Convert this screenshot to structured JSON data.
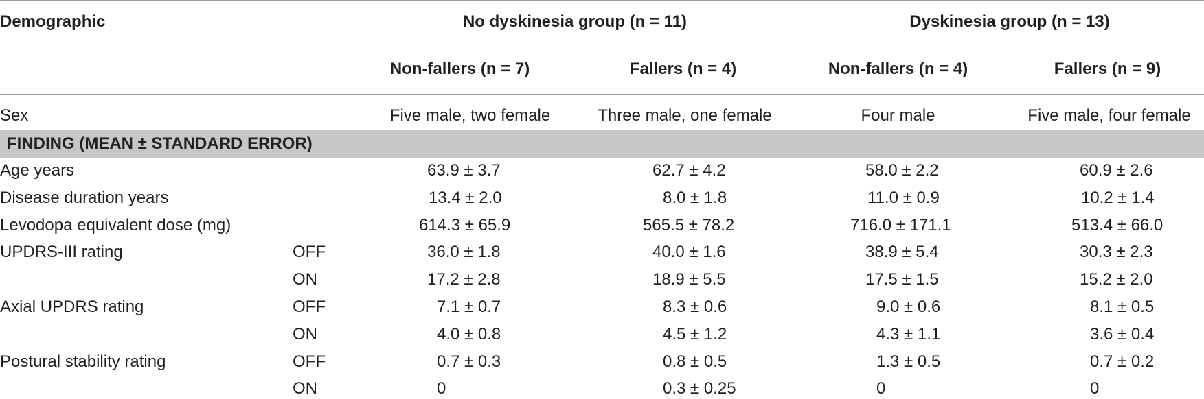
{
  "header": {
    "demographic": "Demographic",
    "group_no_dyskinesia": "No dyskinesia group (n = 11)",
    "group_dyskinesia": "Dyskinesia group (n = 13)",
    "sub_columns": [
      "Non-fallers (n = 7)",
      "Fallers (n = 4)",
      "Non-fallers (n = 4)",
      "Fallers (n = 9)"
    ]
  },
  "sex_row": {
    "label": "Sex",
    "values": [
      "Five male, two female",
      "Three male, one female",
      "Four male",
      "Five male, four female"
    ]
  },
  "section_heading": "FINDING (MEAN ± STANDARD ERROR)",
  "rows": [
    {
      "label": "Age years",
      "condition": "",
      "values": [
        "63.9 ± 3.7",
        "62.7 ± 4.2",
        "58.0 ± 2.2",
        "60.9 ± 2.6"
      ]
    },
    {
      "label": "Disease duration years",
      "condition": "",
      "values": [
        "13.4 ± 2.0",
        "8.0 ± 1.8",
        "11.0 ± 0.9",
        "10.2 ± 1.4"
      ]
    },
    {
      "label": "Levodopa equivalent dose (mg)",
      "condition": "",
      "values": [
        "614.3 ± 65.9",
        "565.5 ± 78.2",
        "716.0 ± 171.1",
        "513.4 ± 66.0"
      ]
    },
    {
      "label": "UPDRS-III rating",
      "condition": "OFF",
      "values": [
        "36.0 ± 1.8",
        "40.0 ± 1.6",
        "38.9 ± 5.4",
        "30.3 ± 2.3"
      ]
    },
    {
      "label": "",
      "condition": "ON",
      "values": [
        "17.2 ± 2.8",
        "18.9 ± 5.5",
        "17.5 ± 1.5",
        "15.2 ± 2.0"
      ]
    },
    {
      "label": "Axial UPDRS rating",
      "condition": "OFF",
      "values": [
        "7.1 ± 0.7",
        "8.3 ± 0.6",
        "9.0 ± 0.6",
        "8.1 ± 0.5"
      ]
    },
    {
      "label": "",
      "condition": "ON",
      "values": [
        "4.0 ± 0.8",
        "4.5 ± 1.2",
        "4.3 ± 1.1",
        "3.6 ± 0.4"
      ]
    },
    {
      "label": "Postural stability rating",
      "condition": "OFF",
      "values": [
        "0.7 ± 0.3",
        "0.8 ± 0.5",
        "1.3 ± 0.5",
        "0.7 ± 0.2"
      ]
    },
    {
      "label": "",
      "condition": "ON",
      "values": [
        "0",
        "0.3 ± 0.25",
        "0",
        "0"
      ]
    }
  ]
}
